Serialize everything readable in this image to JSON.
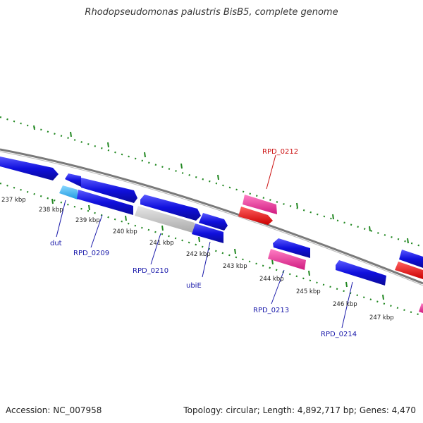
{
  "title": "Rhodopseudomonas palustris BisB5, complete genome",
  "footer": {
    "accession": "Accession: NC_007958",
    "summary": "Topology: circular; Length: 4,892,717 bp; Genes: 4,470"
  },
  "colors": {
    "forward_cds": "#1010dd",
    "reverse_cds": "#1a1ae0",
    "rna_pink": "#e0208f",
    "rna_red": "#e81010",
    "light_blue": "#30b0ee",
    "gray_gene": "#c0c0c0",
    "backbone": "#808080",
    "tick_green": "#228822",
    "label_blue": "#1a1aaa",
    "label_red": "#cc1111"
  },
  "ticks": [
    "237 kbp",
    "238 kbp",
    "239 kbp",
    "240 kbp",
    "241 kbp",
    "242 kbp",
    "243 kbp",
    "244 kbp",
    "245 kbp",
    "246 kbp",
    "247 kbp"
  ],
  "gene_labels": [
    {
      "id": "dut",
      "text": "dut",
      "strand": "reverse"
    },
    {
      "id": "rpd0209",
      "text": "RPD_0209",
      "strand": "reverse"
    },
    {
      "id": "rpd0210",
      "text": "RPD_0210",
      "strand": "reverse"
    },
    {
      "id": "ubie",
      "text": "ubiE",
      "strand": "reverse"
    },
    {
      "id": "rpd0212",
      "text": "RPD_0212",
      "strand": "forward"
    },
    {
      "id": "rpd0213",
      "text": "RPD_0213",
      "strand": "reverse"
    },
    {
      "id": "rpd0214",
      "text": "RPD_0214",
      "strand": "reverse"
    }
  ]
}
